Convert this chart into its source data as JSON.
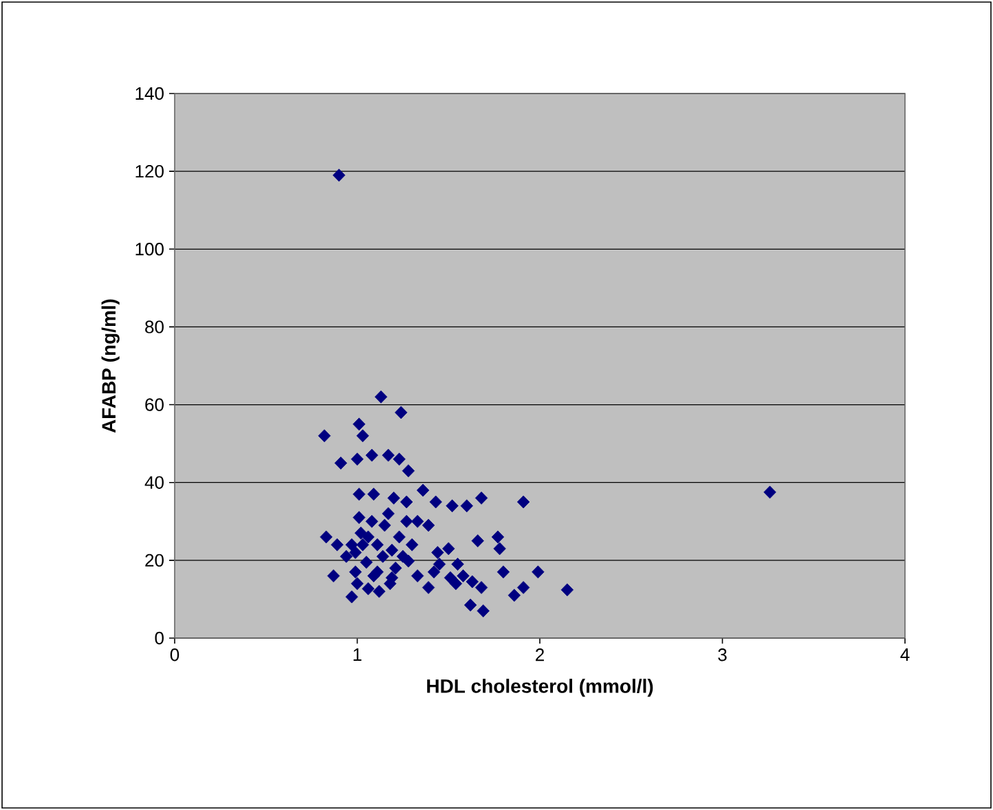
{
  "chart_data": {
    "type": "scatter",
    "xlabel": "HDL cholesterol (mmol/l)",
    "ylabel": "AFABP (ng/ml)",
    "xlim": [
      0,
      4
    ],
    "ylim": [
      0,
      140
    ],
    "xticks": [
      0,
      1,
      2,
      3,
      4
    ],
    "yticks": [
      0,
      20,
      40,
      60,
      80,
      100,
      120,
      140
    ],
    "grid": "y",
    "marker": "diamond",
    "series": [
      {
        "color": "#000080",
        "x": [
          0.9,
          1.13,
          0.82,
          1.01,
          1.03,
          1.24,
          0.91,
          1.0,
          1.08,
          1.17,
          1.23,
          1.28,
          1.36,
          1.01,
          1.09,
          1.2,
          1.27,
          1.43,
          1.52,
          1.6,
          1.68,
          1.91,
          0.83,
          0.89,
          0.94,
          0.87,
          0.97,
          1.01,
          1.08,
          1.15,
          1.23,
          1.3,
          1.39,
          1.44,
          1.5,
          1.55,
          1.66,
          1.77,
          1.78,
          1.63,
          1.68,
          1.62,
          1.69,
          1.8,
          1.86,
          1.91,
          1.99,
          2.15,
          3.26,
          1.05,
          1.11,
          1.19,
          1.25,
          1.33,
          1.39,
          1.45,
          1.51,
          1.06,
          1.12,
          1.18,
          1.03,
          1.11,
          1.19,
          1.28,
          0.99,
          1.02,
          1.14,
          1.33,
          1.0,
          1.09,
          1.27,
          1.17,
          1.06,
          0.97,
          1.42,
          1.58,
          1.54,
          0.99,
          1.21
        ],
        "values": [
          119,
          62,
          52,
          55,
          52,
          58,
          45,
          46,
          47,
          47,
          46,
          43,
          38,
          37,
          37,
          36,
          35,
          35,
          34,
          34,
          36,
          35,
          26,
          24,
          21,
          16,
          10.6,
          31,
          30,
          29,
          26,
          24,
          29,
          22,
          23,
          19,
          25,
          26,
          23,
          14.5,
          13,
          8.5,
          7,
          17,
          11,
          13,
          17,
          12.4,
          37.5,
          19.5,
          17,
          15.5,
          21,
          16,
          13,
          19,
          15.5,
          12.7,
          12,
          14,
          24,
          24,
          22.6,
          19.8,
          17,
          27,
          21,
          30,
          14,
          16,
          30,
          32,
          26,
          24,
          17,
          16,
          14,
          22,
          18
        ]
      }
    ]
  }
}
